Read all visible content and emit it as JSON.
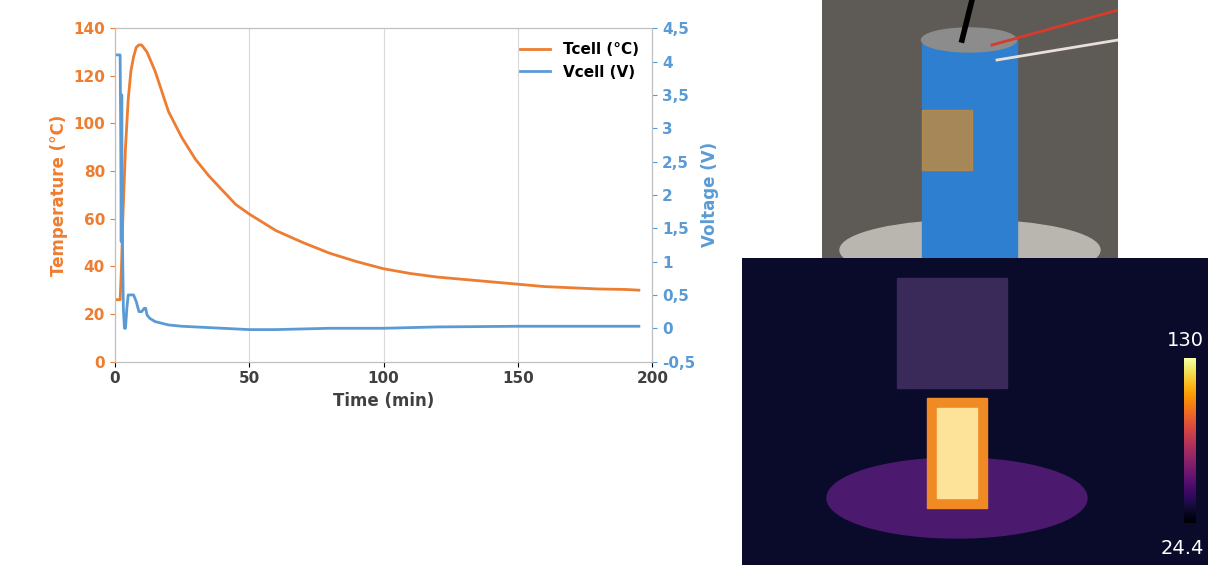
{
  "chart_data": [
    {
      "type": "line",
      "xlabel": "Time (min)",
      "ylabel": "Temperature (°C)",
      "y2label": "Voltage (V)",
      "xlim": [
        0,
        200
      ],
      "xticks": [
        0,
        50,
        100,
        150,
        200
      ],
      "ylim": [
        0,
        140
      ],
      "yticks": [
        0,
        20,
        40,
        60,
        80,
        100,
        120,
        140
      ],
      "y2lim": [
        -0.5,
        4.5
      ],
      "y2ticks": [
        {
          "value": -0.5,
          "label": "-0,5"
        },
        0,
        {
          "value": 0.5,
          "label": "0,5"
        },
        1,
        {
          "value": 1.5,
          "label": "1,5"
        },
        2,
        {
          "value": 2.5,
          "label": "2,5"
        },
        3,
        {
          "value": 3.5,
          "label": "3,5"
        },
        4,
        {
          "value": 4.5,
          "label": "4,5"
        }
      ],
      "grid": "x",
      "legend": "upper right",
      "series": [
        {
          "name": "Tcell (°C)",
          "color": "#ed7d31",
          "x": [
            0,
            1,
            2,
            2.5,
            3,
            4,
            5,
            6,
            7,
            8,
            9,
            10,
            12,
            15,
            20,
            25,
            30,
            35,
            40,
            45,
            50,
            60,
            70,
            80,
            90,
            100,
            110,
            120,
            130,
            140,
            150,
            160,
            170,
            180,
            190,
            195
          ],
          "values": [
            26,
            26,
            26,
            40,
            60,
            90,
            110,
            122,
            128,
            132,
            133,
            133,
            130,
            122,
            105,
            94,
            85,
            78,
            72,
            66,
            62,
            55,
            50,
            45.5,
            42,
            39,
            37,
            35.5,
            34.5,
            33.5,
            32.5,
            31.5,
            31,
            30.5,
            30.3,
            30
          ]
        },
        {
          "name": "Vcell (V)",
          "color": "#5b9bd5",
          "axis": "y2",
          "x": [
            0,
            1,
            2,
            2.2,
            2.4,
            2.6,
            2.8,
            3.2,
            3.6,
            4,
            4.5,
            5,
            6,
            7,
            8,
            9,
            10,
            11,
            11.5,
            12,
            13,
            15,
            20,
            25,
            30,
            40,
            50,
            60,
            80,
            100,
            120,
            150,
            180,
            195
          ],
          "values": [
            4.1,
            4.1,
            4.1,
            3.0,
            1.3,
            3.5,
            1.5,
            0.3,
            0.0,
            0.0,
            0.3,
            0.5,
            0.5,
            0.5,
            0.4,
            0.25,
            0.25,
            0.3,
            0.3,
            0.2,
            0.15,
            0.1,
            0.05,
            0.03,
            0.02,
            0.0,
            -0.02,
            -0.02,
            0.0,
            0.0,
            0.02,
            0.03,
            0.03,
            0.03
          ]
        }
      ]
    },
    {
      "type": "thermal_image",
      "colorbar_range": [
        24.4,
        130
      ],
      "colorbar_ticks": [
        24.4,
        130
      ]
    }
  ]
}
